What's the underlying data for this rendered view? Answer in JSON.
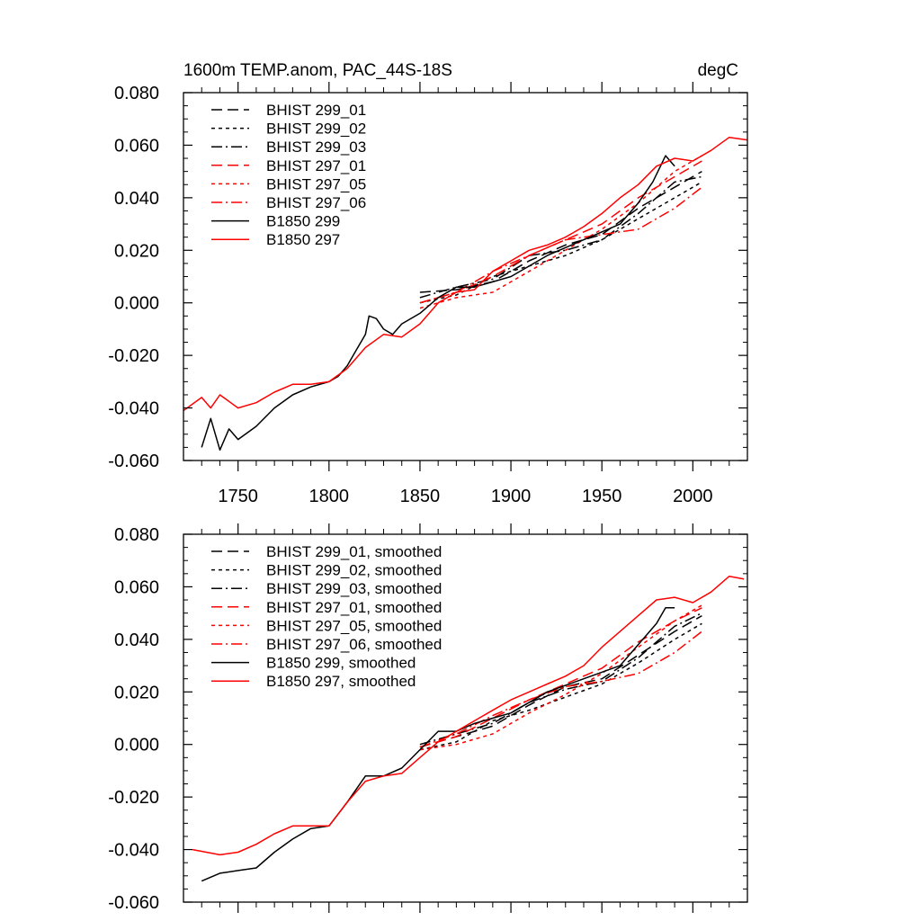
{
  "chart_data": [
    {
      "type": "line",
      "title": "1600m TEMP.anom, PAC_44S-18S",
      "units": "degC",
      "xlabel": "",
      "ylabel": "",
      "xlim": [
        1720,
        2030
      ],
      "ylim": [
        -0.06,
        0.08
      ],
      "xticks": [
        1750,
        1800,
        1850,
        1900,
        1950,
        2000
      ],
      "xtick_labels": [
        "1750",
        "1800",
        "1850",
        "1900",
        "1950",
        "2000"
      ],
      "yticks": [
        -0.06,
        -0.04,
        -0.02,
        0.0,
        0.02,
        0.04,
        0.06,
        0.08
      ],
      "ytick_labels": [
        "-0.060",
        "-0.040",
        "-0.020",
        "0.000",
        "0.020",
        "0.040",
        "0.060",
        "0.080"
      ],
      "legend_position": "top-left",
      "series": [
        {
          "name": "BHIST 299_01",
          "color": "#000000",
          "dash": "long-dash",
          "x": [
            1850,
            1870,
            1890,
            1910,
            1930,
            1950,
            1970,
            1990,
            2005
          ],
          "y": [
            0.004,
            0.005,
            0.008,
            0.016,
            0.022,
            0.026,
            0.036,
            0.044,
            0.05
          ]
        },
        {
          "name": "BHIST 299_02",
          "color": "#000000",
          "dash": "short-dash",
          "x": [
            1850,
            1870,
            1890,
            1910,
            1930,
            1950,
            1970,
            1990,
            2005
          ],
          "y": [
            0.0,
            0.003,
            0.01,
            0.014,
            0.018,
            0.024,
            0.032,
            0.04,
            0.046
          ]
        },
        {
          "name": "BHIST 299_03",
          "color": "#000000",
          "dash": "dash-dot",
          "x": [
            1850,
            1870,
            1890,
            1910,
            1930,
            1950,
            1970,
            1990,
            2005
          ],
          "y": [
            0.002,
            0.006,
            0.009,
            0.018,
            0.02,
            0.024,
            0.034,
            0.046,
            0.048
          ]
        },
        {
          "name": "BHIST 297_01",
          "color": "#ff0000",
          "dash": "long-dash",
          "x": [
            1850,
            1870,
            1890,
            1910,
            1930,
            1950,
            1970,
            1990,
            2005
          ],
          "y": [
            0.0,
            0.004,
            0.01,
            0.018,
            0.024,
            0.03,
            0.04,
            0.048,
            0.054
          ]
        },
        {
          "name": "BHIST 297_05",
          "color": "#ff0000",
          "dash": "short-dash",
          "x": [
            1850,
            1870,
            1890,
            1910,
            1930,
            1950,
            1970,
            1990,
            2005
          ],
          "y": [
            -0.002,
            0.002,
            0.004,
            0.012,
            0.02,
            0.028,
            0.038,
            0.05,
            0.056
          ]
        },
        {
          "name": "BHIST 297_06",
          "color": "#ff0000",
          "dash": "dash-dot",
          "x": [
            1850,
            1870,
            1890,
            1910,
            1930,
            1950,
            1970,
            1990,
            2005
          ],
          "y": [
            0.0,
            0.004,
            0.012,
            0.018,
            0.024,
            0.026,
            0.028,
            0.036,
            0.044
          ]
        },
        {
          "name": "B1850 299",
          "color": "#000000",
          "dash": "solid",
          "x": [
            1730,
            1735,
            1740,
            1745,
            1750,
            1760,
            1770,
            1780,
            1790,
            1800,
            1805,
            1810,
            1815,
            1820,
            1822,
            1826,
            1830,
            1835,
            1840,
            1850,
            1860,
            1870,
            1880,
            1900,
            1920,
            1940,
            1960,
            1970,
            1978,
            1985,
            1990
          ],
          "y": [
            -0.055,
            -0.044,
            -0.056,
            -0.048,
            -0.052,
            -0.047,
            -0.04,
            -0.035,
            -0.032,
            -0.03,
            -0.028,
            -0.024,
            -0.018,
            -0.012,
            -0.005,
            -0.006,
            -0.01,
            -0.012,
            -0.008,
            -0.004,
            0.002,
            0.006,
            0.006,
            0.01,
            0.018,
            0.024,
            0.03,
            0.038,
            0.046,
            0.056,
            0.052
          ]
        },
        {
          "name": "B1850 297",
          "color": "#ff0000",
          "dash": "solid",
          "x": [
            1720,
            1730,
            1735,
            1740,
            1750,
            1760,
            1770,
            1780,
            1790,
            1800,
            1810,
            1820,
            1830,
            1840,
            1850,
            1860,
            1870,
            1880,
            1890,
            1900,
            1910,
            1920,
            1930,
            1940,
            1950,
            1960,
            1970,
            1980,
            1990,
            2000,
            2010,
            2020,
            2030
          ],
          "y": [
            -0.041,
            -0.036,
            -0.04,
            -0.035,
            -0.04,
            -0.038,
            -0.034,
            -0.031,
            -0.031,
            -0.03,
            -0.025,
            -0.017,
            -0.012,
            -0.013,
            -0.008,
            0.0,
            0.004,
            0.005,
            0.012,
            0.016,
            0.02,
            0.022,
            0.025,
            0.029,
            0.034,
            0.04,
            0.045,
            0.052,
            0.055,
            0.054,
            0.058,
            0.063,
            0.062
          ]
        }
      ]
    },
    {
      "type": "line",
      "title": "",
      "xlabel": "",
      "ylabel": "",
      "xlim": [
        1720,
        2030
      ],
      "ylim": [
        -0.06,
        0.08
      ],
      "xticks": [
        1750,
        1800,
        1850,
        1900,
        1950,
        2000
      ],
      "yticks": [
        -0.06,
        -0.04,
        -0.02,
        0.0,
        0.02,
        0.04,
        0.06,
        0.08
      ],
      "ytick_labels": [
        "-0.060",
        "-0.040",
        "-0.020",
        "0.000",
        "0.020",
        "0.040",
        "0.060",
        "0.080"
      ],
      "legend_position": "top-left",
      "series": [
        {
          "name": "BHIST 299_01, smoothed",
          "color": "#000000",
          "dash": "long-dash",
          "x": [
            1850,
            1870,
            1890,
            1910,
            1930,
            1950,
            1970,
            1990,
            2005
          ],
          "y": [
            -0.001,
            0.003,
            0.007,
            0.015,
            0.022,
            0.025,
            0.034,
            0.043,
            0.049
          ]
        },
        {
          "name": "BHIST 299_02, smoothed",
          "color": "#000000",
          "dash": "short-dash",
          "x": [
            1850,
            1870,
            1890,
            1910,
            1930,
            1950,
            1970,
            1990,
            2005
          ],
          "y": [
            -0.002,
            0.001,
            0.009,
            0.013,
            0.018,
            0.023,
            0.031,
            0.04,
            0.046
          ]
        },
        {
          "name": "BHIST 299_03, smoothed",
          "color": "#000000",
          "dash": "dash-dot",
          "x": [
            1850,
            1870,
            1890,
            1910,
            1930,
            1950,
            1970,
            1990,
            2005
          ],
          "y": [
            0.0,
            0.004,
            0.008,
            0.016,
            0.021,
            0.024,
            0.033,
            0.045,
            0.05
          ]
        },
        {
          "name": "BHIST 297_01, smoothed",
          "color": "#ff0000",
          "dash": "long-dash",
          "x": [
            1850,
            1870,
            1890,
            1910,
            1930,
            1950,
            1970,
            1990,
            2005
          ],
          "y": [
            -0.001,
            0.003,
            0.01,
            0.017,
            0.023,
            0.029,
            0.039,
            0.047,
            0.052
          ]
        },
        {
          "name": "BHIST 297_05, smoothed",
          "color": "#ff0000",
          "dash": "short-dash",
          "x": [
            1850,
            1870,
            1890,
            1910,
            1930,
            1950,
            1970,
            1990,
            2005
          ],
          "y": [
            -0.002,
            0.0,
            0.004,
            0.012,
            0.019,
            0.027,
            0.037,
            0.047,
            0.053
          ]
        },
        {
          "name": "BHIST 297_06, smoothed",
          "color": "#ff0000",
          "dash": "dash-dot",
          "x": [
            1850,
            1870,
            1890,
            1910,
            1930,
            1950,
            1970,
            1990,
            2005
          ],
          "y": [
            -0.001,
            0.004,
            0.011,
            0.017,
            0.022,
            0.024,
            0.027,
            0.035,
            0.043
          ]
        },
        {
          "name": "B1850 299, smoothed",
          "color": "#000000",
          "dash": "solid",
          "x": [
            1730,
            1740,
            1750,
            1760,
            1770,
            1780,
            1790,
            1800,
            1810,
            1820,
            1830,
            1840,
            1850,
            1860,
            1870,
            1880,
            1890,
            1900,
            1920,
            1940,
            1960,
            1970,
            1980,
            1985,
            1990
          ],
          "y": [
            -0.052,
            -0.049,
            -0.048,
            -0.047,
            -0.041,
            -0.036,
            -0.032,
            -0.031,
            -0.022,
            -0.012,
            -0.012,
            -0.009,
            -0.002,
            0.005,
            0.005,
            0.008,
            0.01,
            0.012,
            0.02,
            0.025,
            0.03,
            0.038,
            0.046,
            0.052,
            0.052
          ]
        },
        {
          "name": "B1850 297, smoothed",
          "color": "#ff0000",
          "dash": "solid",
          "x": [
            1725,
            1740,
            1750,
            1760,
            1770,
            1780,
            1790,
            1800,
            1810,
            1820,
            1830,
            1840,
            1850,
            1860,
            1870,
            1880,
            1890,
            1900,
            1910,
            1920,
            1930,
            1940,
            1950,
            1960,
            1970,
            1980,
            1990,
            2000,
            2010,
            2020,
            2028
          ],
          "y": [
            -0.04,
            -0.042,
            -0.041,
            -0.038,
            -0.034,
            -0.031,
            -0.031,
            -0.031,
            -0.022,
            -0.014,
            -0.012,
            -0.011,
            -0.005,
            0.001,
            0.005,
            0.009,
            0.013,
            0.017,
            0.02,
            0.023,
            0.026,
            0.03,
            0.037,
            0.043,
            0.049,
            0.055,
            0.056,
            0.054,
            0.058,
            0.064,
            0.063
          ]
        }
      ]
    }
  ]
}
